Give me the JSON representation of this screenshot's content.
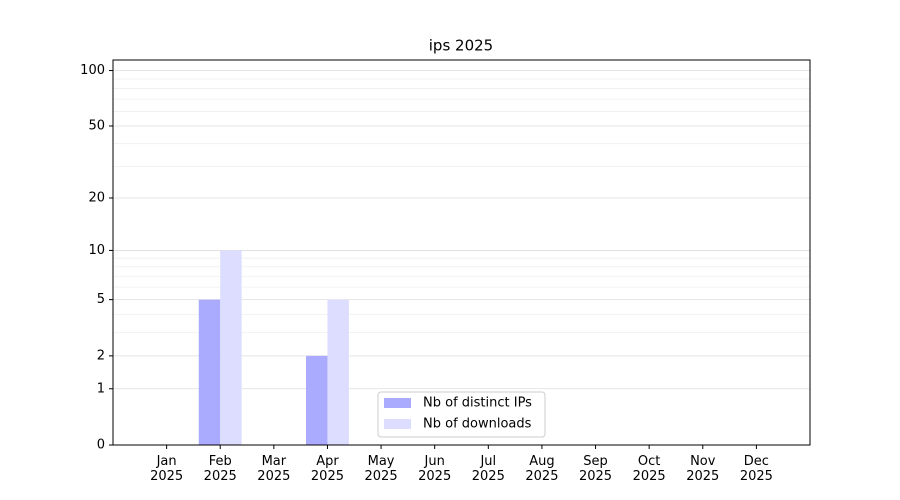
{
  "chart_data": {
    "type": "bar",
    "title": "ips 2025",
    "categories": [
      "Jan\n2025",
      "Feb\n2025",
      "Mar\n2025",
      "Apr\n2025",
      "May\n2025",
      "Jun\n2025",
      "Jul\n2025",
      "Aug\n2025",
      "Sep\n2025",
      "Oct\n2025",
      "Nov\n2025",
      "Dec\n2025"
    ],
    "series": [
      {
        "name": "Nb of distinct IPs",
        "color": "#aaaaff",
        "values": [
          0,
          5,
          0,
          2,
          0,
          0,
          0,
          0,
          0,
          0,
          0,
          0
        ]
      },
      {
        "name": "Nb of downloads",
        "color": "#ddddff",
        "values": [
          0,
          10,
          0,
          5,
          0,
          0,
          0,
          0,
          0,
          0,
          0,
          0
        ]
      }
    ],
    "yscale": "log1p",
    "ylim": [
      0,
      114
    ],
    "yticks": [
      0,
      1,
      2,
      5,
      10,
      20,
      50,
      100
    ],
    "yticks_minor": [
      3,
      4,
      6,
      7,
      8,
      9,
      30,
      40,
      60,
      70,
      80,
      90
    ],
    "grid": true,
    "legend": "lower center"
  }
}
